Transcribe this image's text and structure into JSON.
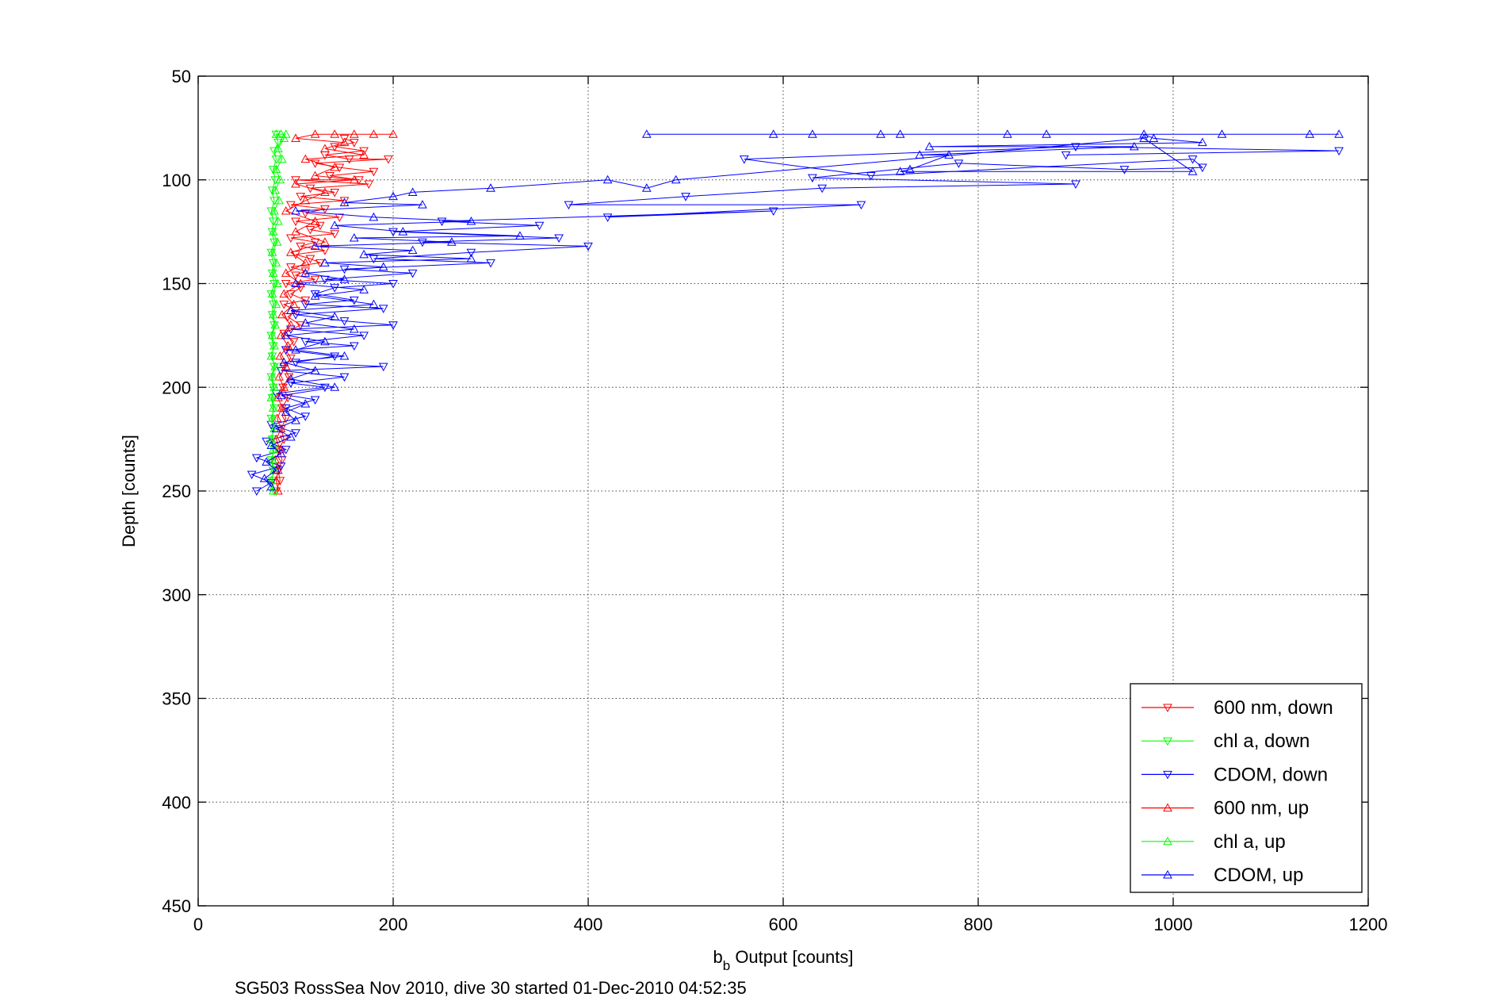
{
  "chart_data": {
    "type": "line",
    "xlabel_main": "b",
    "xlabel_sub": "b",
    "xlabel_rest": " Output [counts]",
    "ylabel": "Depth [counts]",
    "caption": "SG503 RossSea Nov 2010, dive 30 started 01-Dec-2010 04:52:35",
    "xlim": [
      0,
      1200
    ],
    "ylim": [
      50,
      450
    ],
    "y_reversed": true,
    "x_ticks": [
      0,
      200,
      400,
      600,
      800,
      1000,
      1200
    ],
    "y_ticks": [
      50,
      100,
      150,
      200,
      250,
      300,
      350,
      400,
      450
    ],
    "grid": true,
    "legend_position": "bottom-right",
    "series": [
      {
        "name": "600 nm, down",
        "color": "#ff0000",
        "marker": "triangle-down",
        "points": [
          [
            150,
            80
          ],
          [
            160,
            82
          ],
          [
            140,
            84
          ],
          [
            170,
            86
          ],
          [
            130,
            88
          ],
          [
            155,
            90
          ],
          [
            195,
            90
          ],
          [
            120,
            92
          ],
          [
            145,
            94
          ],
          [
            180,
            96
          ],
          [
            135,
            98
          ],
          [
            165,
            100
          ],
          [
            100,
            100
          ],
          [
            175,
            102
          ],
          [
            115,
            104
          ],
          [
            140,
            106
          ],
          [
            105,
            108
          ],
          [
            150,
            110
          ],
          [
            95,
            112
          ],
          [
            130,
            114
          ],
          [
            110,
            116
          ],
          [
            145,
            118
          ],
          [
            100,
            120
          ],
          [
            125,
            122
          ],
          [
            115,
            124
          ],
          [
            140,
            126
          ],
          [
            95,
            128
          ],
          [
            120,
            130
          ],
          [
            105,
            132
          ],
          [
            130,
            134
          ],
          [
            100,
            136
          ],
          [
            115,
            138
          ],
          [
            125,
            140
          ],
          [
            95,
            142
          ],
          [
            110,
            144
          ],
          [
            100,
            146
          ],
          [
            120,
            148
          ],
          [
            90,
            150
          ],
          [
            105,
            152
          ],
          [
            95,
            155
          ],
          [
            110,
            158
          ],
          [
            88,
            160
          ],
          [
            100,
            163
          ],
          [
            92,
            166
          ],
          [
            105,
            170
          ],
          [
            88,
            174
          ],
          [
            98,
            178
          ],
          [
            90,
            182
          ],
          [
            95,
            186
          ],
          [
            88,
            190
          ],
          [
            93,
            195
          ],
          [
            87,
            200
          ],
          [
            92,
            205
          ],
          [
            86,
            210
          ],
          [
            90,
            215
          ],
          [
            85,
            220
          ],
          [
            88,
            225
          ],
          [
            83,
            230
          ],
          [
            86,
            235
          ],
          [
            82,
            240
          ],
          [
            84,
            245
          ],
          [
            80,
            250
          ]
        ]
      },
      {
        "name": "chl a, down",
        "color": "#00ff00",
        "marker": "triangle-down",
        "points": [
          [
            80,
            78
          ],
          [
            82,
            82
          ],
          [
            78,
            86
          ],
          [
            80,
            90
          ],
          [
            77,
            95
          ],
          [
            79,
            100
          ],
          [
            76,
            105
          ],
          [
            78,
            110
          ],
          [
            75,
            115
          ],
          [
            77,
            120
          ],
          [
            76,
            125
          ],
          [
            78,
            130
          ],
          [
            75,
            135
          ],
          [
            77,
            140
          ],
          [
            76,
            145
          ],
          [
            78,
            150
          ],
          [
            75,
            155
          ],
          [
            77,
            160
          ],
          [
            76,
            165
          ],
          [
            78,
            170
          ],
          [
            75,
            175
          ],
          [
            77,
            180
          ],
          [
            76,
            185
          ],
          [
            78,
            190
          ],
          [
            75,
            195
          ],
          [
            77,
            200
          ],
          [
            76,
            205
          ],
          [
            78,
            210
          ],
          [
            75,
            215
          ],
          [
            77,
            220
          ],
          [
            76,
            225
          ],
          [
            78,
            230
          ],
          [
            75,
            235
          ],
          [
            77,
            240
          ],
          [
            76,
            245
          ],
          [
            78,
            250
          ]
        ]
      },
      {
        "name": "CDOM, down",
        "color": "#0000ff",
        "marker": "triangle-down",
        "points": [
          [
            890,
            88
          ],
          [
            1170,
            86
          ],
          [
            900,
            84
          ],
          [
            560,
            90
          ],
          [
            690,
            98
          ],
          [
            1020,
            90
          ],
          [
            1030,
            94
          ],
          [
            950,
            95
          ],
          [
            780,
            92
          ],
          [
            630,
            99
          ],
          [
            900,
            102
          ],
          [
            640,
            104
          ],
          [
            500,
            108
          ],
          [
            380,
            112
          ],
          [
            680,
            112
          ],
          [
            420,
            118
          ],
          [
            590,
            115
          ],
          [
            250,
            120
          ],
          [
            350,
            122
          ],
          [
            200,
            125
          ],
          [
            370,
            128
          ],
          [
            230,
            130
          ],
          [
            400,
            132
          ],
          [
            280,
            135
          ],
          [
            180,
            138
          ],
          [
            300,
            140
          ],
          [
            150,
            143
          ],
          [
            220,
            145
          ],
          [
            130,
            148
          ],
          [
            200,
            150
          ],
          [
            140,
            152
          ],
          [
            120,
            155
          ],
          [
            160,
            158
          ],
          [
            110,
            160
          ],
          [
            190,
            162
          ],
          [
            100,
            165
          ],
          [
            150,
            168
          ],
          [
            200,
            170
          ],
          [
            95,
            172
          ],
          [
            170,
            175
          ],
          [
            110,
            178
          ],
          [
            160,
            180
          ],
          [
            90,
            182
          ],
          [
            140,
            185
          ],
          [
            100,
            188
          ],
          [
            190,
            190
          ],
          [
            85,
            192
          ],
          [
            150,
            195
          ],
          [
            95,
            198
          ],
          [
            130,
            200
          ],
          [
            80,
            203
          ],
          [
            120,
            206
          ],
          [
            90,
            210
          ],
          [
            110,
            214
          ],
          [
            75,
            218
          ],
          [
            100,
            222
          ],
          [
            70,
            226
          ],
          [
            90,
            230
          ],
          [
            60,
            234
          ],
          [
            85,
            238
          ],
          [
            55,
            242
          ],
          [
            75,
            246
          ],
          [
            60,
            250
          ]
        ]
      },
      {
        "name": "600 nm, up",
        "color": "#ff0000",
        "marker": "triangle-up",
        "points": [
          [
            200,
            78
          ],
          [
            180,
            78
          ],
          [
            160,
            78
          ],
          [
            140,
            78
          ],
          [
            120,
            78
          ],
          [
            100,
            80
          ],
          [
            150,
            82
          ],
          [
            130,
            85
          ],
          [
            170,
            88
          ],
          [
            110,
            90
          ],
          [
            140,
            94
          ],
          [
            120,
            98
          ],
          [
            160,
            100
          ],
          [
            100,
            102
          ],
          [
            130,
            106
          ],
          [
            110,
            110
          ],
          [
            90,
            115
          ],
          [
            120,
            120
          ],
          [
            100,
            125
          ],
          [
            130,
            130
          ],
          [
            95,
            135
          ],
          [
            110,
            140
          ],
          [
            90,
            145
          ],
          [
            105,
            150
          ],
          [
            88,
            155
          ],
          [
            98,
            160
          ],
          [
            86,
            165
          ],
          [
            95,
            170
          ],
          [
            85,
            175
          ],
          [
            92,
            180
          ],
          [
            84,
            185
          ],
          [
            90,
            190
          ],
          [
            83,
            195
          ],
          [
            88,
            200
          ],
          [
            82,
            205
          ],
          [
            86,
            210
          ],
          [
            81,
            215
          ],
          [
            85,
            220
          ],
          [
            80,
            225
          ],
          [
            84,
            230
          ],
          [
            79,
            235
          ],
          [
            82,
            240
          ],
          [
            80,
            245
          ],
          [
            82,
            250
          ]
        ]
      },
      {
        "name": "chl a, up",
        "color": "#00ff00",
        "marker": "triangle-up",
        "points": [
          [
            90,
            78
          ],
          [
            85,
            78
          ],
          [
            80,
            78
          ],
          [
            88,
            80
          ],
          [
            82,
            85
          ],
          [
            86,
            90
          ],
          [
            80,
            95
          ],
          [
            84,
            100
          ],
          [
            79,
            105
          ],
          [
            83,
            110
          ],
          [
            78,
            115
          ],
          [
            82,
            120
          ],
          [
            77,
            125
          ],
          [
            81,
            130
          ],
          [
            76,
            135
          ],
          [
            80,
            140
          ],
          [
            77,
            145
          ],
          [
            81,
            150
          ],
          [
            76,
            155
          ],
          [
            80,
            160
          ],
          [
            77,
            165
          ],
          [
            79,
            170
          ],
          [
            76,
            175
          ],
          [
            78,
            180
          ],
          [
            75,
            185
          ],
          [
            79,
            190
          ],
          [
            76,
            195
          ],
          [
            78,
            200
          ],
          [
            75,
            205
          ],
          [
            77,
            210
          ],
          [
            76,
            215
          ],
          [
            78,
            220
          ],
          [
            75,
            225
          ],
          [
            77,
            230
          ],
          [
            76,
            235
          ],
          [
            78,
            240
          ],
          [
            75,
            245
          ],
          [
            77,
            250
          ]
        ]
      },
      {
        "name": "CDOM, up",
        "color": "#0000ff",
        "marker": "triangle-up",
        "points": [
          [
            460,
            78
          ],
          [
            590,
            78
          ],
          [
            630,
            78
          ],
          [
            700,
            78
          ],
          [
            720,
            78
          ],
          [
            830,
            78
          ],
          [
            870,
            78
          ],
          [
            1050,
            78
          ],
          [
            1140,
            78
          ],
          [
            1170,
            78
          ],
          [
            970,
            78
          ],
          [
            980,
            80
          ],
          [
            1030,
            82
          ],
          [
            750,
            84
          ],
          [
            960,
            84
          ],
          [
            740,
            88
          ],
          [
            770,
            88
          ],
          [
            730,
            95
          ],
          [
            720,
            96
          ],
          [
            1020,
            96
          ],
          [
            970,
            80
          ],
          [
            490,
            100
          ],
          [
            460,
            104
          ],
          [
            420,
            100
          ],
          [
            300,
            104
          ],
          [
            220,
            106
          ],
          [
            200,
            108
          ],
          [
            150,
            111
          ],
          [
            230,
            112
          ],
          [
            100,
            115
          ],
          [
            180,
            118
          ],
          [
            280,
            120
          ],
          [
            140,
            122
          ],
          [
            210,
            125
          ],
          [
            330,
            127
          ],
          [
            160,
            128
          ],
          [
            260,
            130
          ],
          [
            120,
            132
          ],
          [
            220,
            134
          ],
          [
            170,
            136
          ],
          [
            280,
            138
          ],
          [
            130,
            140
          ],
          [
            190,
            142
          ],
          [
            110,
            145
          ],
          [
            150,
            148
          ],
          [
            100,
            150
          ],
          [
            170,
            153
          ],
          [
            120,
            156
          ],
          [
            180,
            160
          ],
          [
            95,
            163
          ],
          [
            140,
            166
          ],
          [
            110,
            169
          ],
          [
            160,
            172
          ],
          [
            90,
            175
          ],
          [
            130,
            178
          ],
          [
            100,
            182
          ],
          [
            150,
            185
          ],
          [
            88,
            188
          ],
          [
            120,
            192
          ],
          [
            95,
            196
          ],
          [
            140,
            200
          ],
          [
            85,
            204
          ],
          [
            110,
            208
          ],
          [
            90,
            212
          ],
          [
            100,
            216
          ],
          [
            80,
            220
          ],
          [
            95,
            224
          ],
          [
            75,
            228
          ],
          [
            85,
            232
          ],
          [
            70,
            236
          ],
          [
            80,
            240
          ],
          [
            68,
            244
          ],
          [
            75,
            248
          ]
        ]
      }
    ]
  }
}
